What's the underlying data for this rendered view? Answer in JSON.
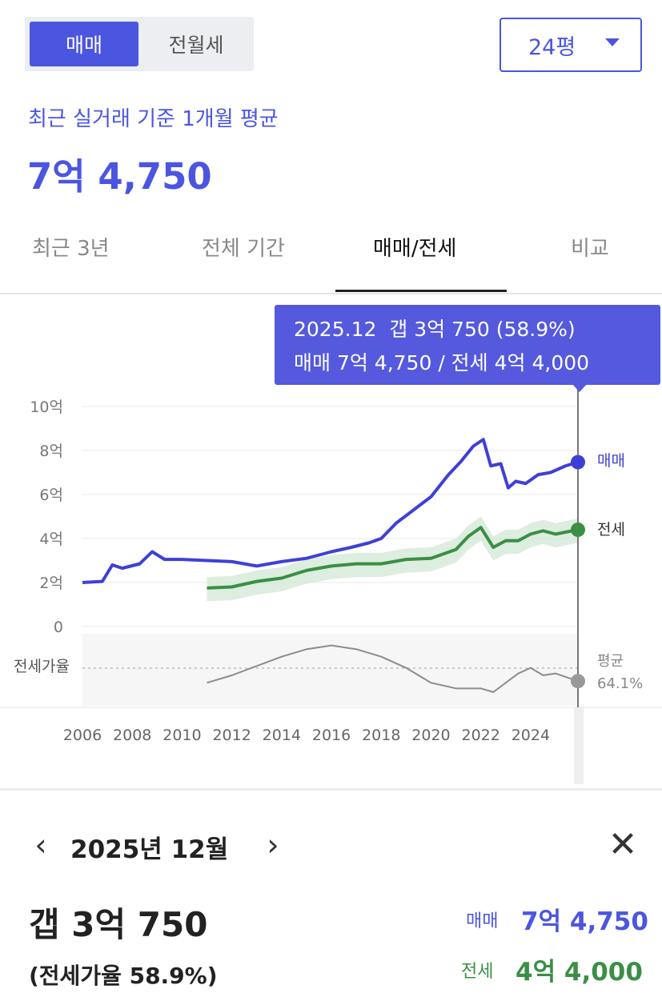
{
  "toggle": {
    "buy_label": "매매",
    "rent_label": "전월세"
  },
  "size_select": {
    "value": "24평"
  },
  "summary": {
    "subtitle": "최근 실거래 기준 1개월 평균",
    "price": "7억 4,750"
  },
  "tabs": [
    "최근 3년",
    "전체 기간",
    "매매/전세",
    "비교"
  ],
  "tooltip": {
    "line1": "2025.12  갭 3억 750 (58.9%)",
    "line2": "매매 7억 4,750 / 전세 4억 4,000"
  },
  "colors": {
    "accent": "#4b55e0",
    "sale": "#3f3fd8",
    "jeonse": "#3a8f44",
    "ratio": "#8c8c8c"
  },
  "chart_data": {
    "type": "line",
    "ylim": [
      0,
      10
    ],
    "y_ticks": [
      "10억",
      "8억",
      "6억",
      "4억",
      "2억",
      "0"
    ],
    "x_ticks": [
      "2006",
      "2008",
      "2010",
      "2012",
      "2014",
      "2016",
      "2018",
      "2020",
      "2022",
      "2024"
    ],
    "series": [
      {
        "name": "매매",
        "x": [
          2006.0,
          2006.8,
          2007.2,
          2007.6,
          2008.3,
          2008.8,
          2009.3,
          2010.0,
          2011.0,
          2012.0,
          2013.0,
          2014.0,
          2015.0,
          2016.0,
          2016.8,
          2017.5,
          2018.0,
          2018.6,
          2019.3,
          2020.0,
          2020.7,
          2021.2,
          2021.7,
          2022.1,
          2022.4,
          2022.8,
          2023.1,
          2023.4,
          2023.8,
          2024.3,
          2024.8,
          2025.4,
          2025.9
        ],
        "y": [
          2.0,
          2.05,
          2.8,
          2.65,
          2.85,
          3.4,
          3.05,
          3.05,
          3.0,
          2.95,
          2.75,
          2.95,
          3.1,
          3.4,
          3.6,
          3.8,
          4.0,
          4.7,
          5.3,
          5.9,
          6.9,
          7.5,
          8.2,
          8.5,
          7.3,
          7.4,
          6.3,
          6.6,
          6.5,
          6.9,
          7.0,
          7.3,
          7.47
        ]
      },
      {
        "name": "전세",
        "x": [
          2011.0,
          2012.0,
          2013.0,
          2014.0,
          2015.0,
          2016.0,
          2017.0,
          2018.0,
          2019.0,
          2020.0,
          2020.5,
          2021.0,
          2021.5,
          2022.0,
          2022.5,
          2023.0,
          2023.5,
          2024.0,
          2024.5,
          2025.0,
          2025.9
        ],
        "y": [
          1.75,
          1.8,
          2.05,
          2.2,
          2.55,
          2.75,
          2.85,
          2.85,
          3.05,
          3.1,
          3.3,
          3.5,
          4.1,
          4.5,
          3.6,
          3.9,
          3.9,
          4.2,
          4.35,
          4.2,
          4.4
        ]
      },
      {
        "name": "전세가율",
        "x": [
          2011.0,
          2012.0,
          2013.0,
          2014.0,
          2015.0,
          2016.0,
          2017.0,
          2018.0,
          2019.0,
          2020.0,
          2021.0,
          2022.0,
          2022.5,
          2023.0,
          2023.5,
          2024.0,
          2024.5,
          2025.0,
          2025.9
        ],
        "y": [
          58,
          62,
          67,
          72,
          76,
          78,
          76,
          72,
          66,
          58,
          55,
          55,
          53,
          58,
          63,
          66,
          62,
          63,
          58.9
        ]
      }
    ],
    "ratio_label": "전세가율",
    "average_label": "평균",
    "average_value": "64.1%",
    "sale_label": "매매",
    "jeonse_label": "전세"
  },
  "detail": {
    "date": "2025년 12월",
    "gap": "갭 3억 750",
    "ratio": "(전세가율 58.9%)",
    "sale_label": "매매",
    "sale_value": "7억 4,750",
    "jeonse_label": "전세",
    "jeonse_value": "4억 4,000"
  }
}
